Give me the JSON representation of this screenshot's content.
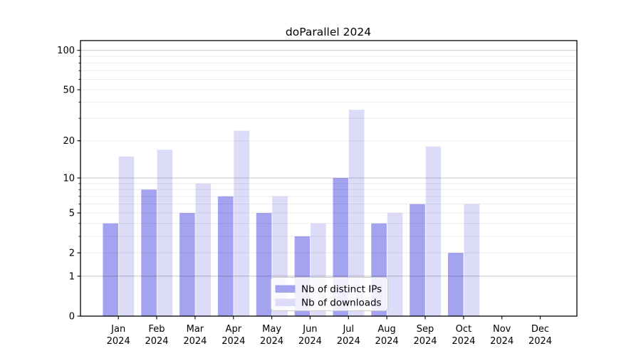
{
  "chart_data": {
    "type": "bar",
    "title": "doParallel 2024",
    "categories": [
      "Jan 2024",
      "Feb 2024",
      "Mar 2024",
      "Apr 2024",
      "May 2024",
      "Jun 2024",
      "Jul 2024",
      "Aug 2024",
      "Sep 2024",
      "Oct 2024",
      "Nov 2024",
      "Dec 2024"
    ],
    "series": [
      {
        "name": "Nb of distinct IPs",
        "color": "#a3a3ef",
        "values": [
          4,
          8,
          5,
          7,
          5,
          3,
          10,
          4,
          6,
          2,
          0,
          0
        ]
      },
      {
        "name": "Nb of downloads",
        "color": "#dcdcf8",
        "values": [
          15,
          17,
          9,
          24,
          7,
          4,
          35,
          5,
          18,
          6,
          0,
          0
        ]
      }
    ],
    "xlabel": "",
    "ylabel": "",
    "y_scale": "log1p",
    "ylim": [
      0,
      119
    ],
    "y_tick_labels": [
      "0",
      "1",
      "2",
      "5",
      "10",
      "20",
      "50",
      "100"
    ],
    "y_tick_values": [
      0,
      1,
      2,
      5,
      10,
      20,
      50,
      100
    ],
    "y_major_gridlines": [
      1,
      10,
      100
    ],
    "y_minor_gridlines": [
      2,
      3,
      4,
      5,
      6,
      7,
      8,
      9,
      20,
      30,
      40,
      50,
      60,
      70,
      80,
      90
    ],
    "grid": true,
    "legend_position": "lower center",
    "frame_color": "#000000",
    "major_grid_rgba": "rgba(0,0,0,0.22)",
    "minor_grid_rgba": "rgba(0,0,0,0.075)"
  }
}
